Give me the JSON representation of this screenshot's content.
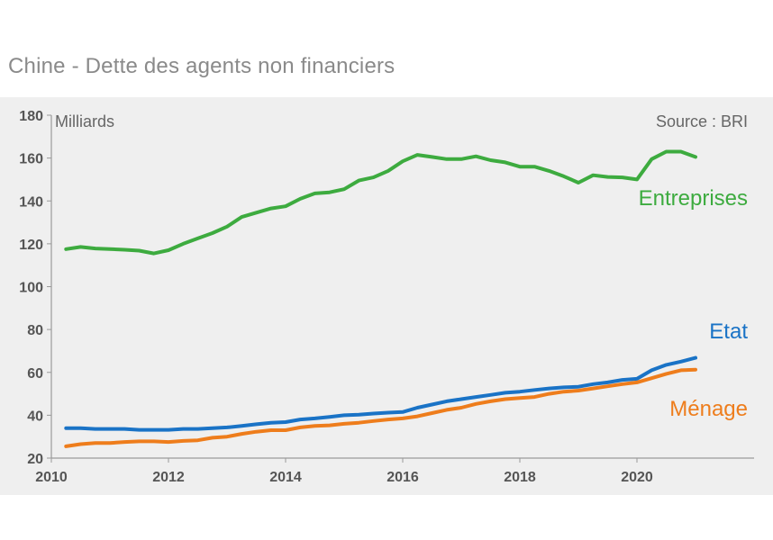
{
  "title": "Chine - Dette des agents non financiers",
  "chart_data": {
    "type": "line",
    "title": "Chine - Dette des agents non financiers",
    "unit_label": "Milliards",
    "source": "Source : BRI",
    "xlim": [
      2010,
      2022
    ],
    "ylim": [
      20,
      180
    ],
    "x_ticks": [
      2010,
      2012,
      2014,
      2016,
      2018,
      2020
    ],
    "y_ticks": [
      20,
      40,
      60,
      80,
      100,
      120,
      140,
      160,
      180
    ],
    "grid": false,
    "series": [
      {
        "name": "Entreprises",
        "color": "#3dab3f",
        "x": [
          2010.25,
          2010.5,
          2010.75,
          2011.0,
          2011.25,
          2011.5,
          2011.75,
          2012.0,
          2012.25,
          2012.5,
          2012.75,
          2013.0,
          2013.25,
          2013.5,
          2013.75,
          2014.0,
          2014.25,
          2014.5,
          2014.75,
          2015.0,
          2015.25,
          2015.5,
          2015.75,
          2016.0,
          2016.25,
          2016.5,
          2016.75,
          2017.0,
          2017.25,
          2017.5,
          2017.75,
          2018.0,
          2018.25,
          2018.5,
          2018.75,
          2019.0,
          2019.25,
          2019.5,
          2019.75,
          2020.0,
          2020.25,
          2020.5,
          2020.75,
          2021.0
        ],
        "values": [
          117.5,
          118.5,
          117.8,
          117.5,
          117.2,
          116.8,
          115.5,
          117.0,
          120.0,
          122.5,
          125.0,
          128.0,
          132.5,
          134.5,
          136.5,
          137.5,
          141.0,
          143.5,
          144.0,
          145.5,
          149.5,
          151.0,
          154.0,
          158.5,
          161.5,
          160.5,
          159.5,
          159.5,
          160.8,
          159.0,
          158.0,
          156.0,
          156.0,
          154.0,
          151.5,
          148.5,
          152.0,
          151.2,
          151.0,
          150.0,
          159.5,
          163.0,
          163.0,
          160.5
        ]
      },
      {
        "name": "Etat",
        "color": "#1a73c6",
        "x": [
          2010.25,
          2010.5,
          2010.75,
          2011.0,
          2011.25,
          2011.5,
          2011.75,
          2012.0,
          2012.25,
          2012.5,
          2012.75,
          2013.0,
          2013.25,
          2013.5,
          2013.75,
          2014.0,
          2014.25,
          2014.5,
          2014.75,
          2015.0,
          2015.25,
          2015.5,
          2015.75,
          2016.0,
          2016.25,
          2016.5,
          2016.75,
          2017.0,
          2017.25,
          2017.5,
          2017.75,
          2018.0,
          2018.25,
          2018.5,
          2018.75,
          2019.0,
          2019.25,
          2019.5,
          2019.75,
          2020.0,
          2020.25,
          2020.5,
          2020.75,
          2021.0
        ],
        "values": [
          34.0,
          34.0,
          33.6,
          33.6,
          33.6,
          33.2,
          33.2,
          33.2,
          33.6,
          33.6,
          34.0,
          34.3,
          35.0,
          35.8,
          36.5,
          36.8,
          38.0,
          38.5,
          39.2,
          40.0,
          40.3,
          40.8,
          41.2,
          41.5,
          43.5,
          45.0,
          46.5,
          47.5,
          48.5,
          49.5,
          50.5,
          51.0,
          51.8,
          52.5,
          53.0,
          53.3,
          54.5,
          55.3,
          56.5,
          57.0,
          61.0,
          63.5,
          65.0,
          66.8
        ]
      },
      {
        "name": "Ménage",
        "color": "#ee7d1c",
        "x": [
          2010.25,
          2010.5,
          2010.75,
          2011.0,
          2011.25,
          2011.5,
          2011.75,
          2012.0,
          2012.25,
          2012.5,
          2012.75,
          2013.0,
          2013.25,
          2013.5,
          2013.75,
          2014.0,
          2014.25,
          2014.5,
          2014.75,
          2015.0,
          2015.25,
          2015.5,
          2015.75,
          2016.0,
          2016.25,
          2016.5,
          2016.75,
          2017.0,
          2017.25,
          2017.5,
          2017.75,
          2018.0,
          2018.25,
          2018.5,
          2018.75,
          2019.0,
          2019.25,
          2019.5,
          2019.75,
          2020.0,
          2020.25,
          2020.5,
          2020.75,
          2021.0
        ],
        "values": [
          25.5,
          26.5,
          27.0,
          27.0,
          27.5,
          27.8,
          27.8,
          27.5,
          28.0,
          28.3,
          29.5,
          30.0,
          31.3,
          32.3,
          33.0,
          33.0,
          34.3,
          35.0,
          35.3,
          36.0,
          36.5,
          37.3,
          38.0,
          38.5,
          39.5,
          41.0,
          42.5,
          43.5,
          45.3,
          46.5,
          47.5,
          48.0,
          48.5,
          50.0,
          51.0,
          51.5,
          52.5,
          53.5,
          54.5,
          55.3,
          57.3,
          59.3,
          61.0,
          61.3
        ]
      }
    ]
  }
}
